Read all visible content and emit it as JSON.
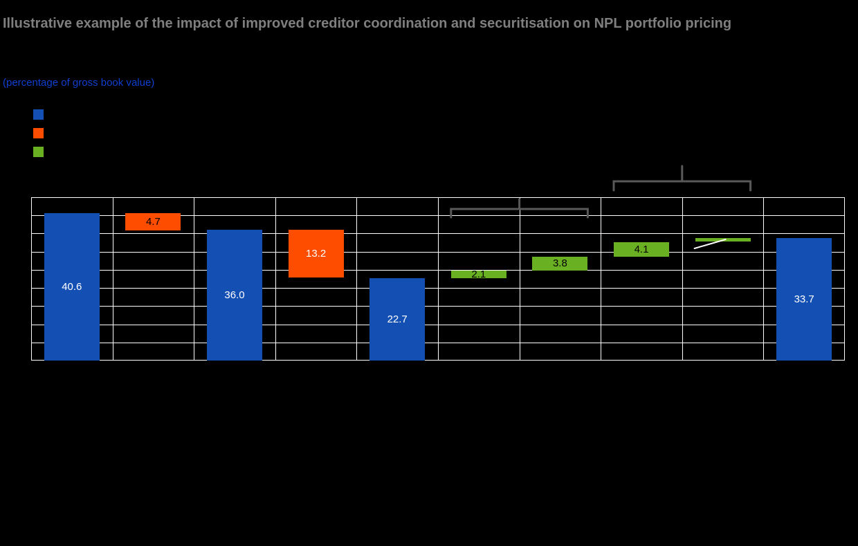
{
  "header": {
    "title": "Illustrative example of the impact of improved creditor coordination and securitisation on NPL portfolio pricing",
    "subtitle": "(percentage of gross book value)"
  },
  "legend": {
    "items": [
      {
        "name": "blue-series",
        "color": "#1450b4"
      },
      {
        "name": "orange-series",
        "color": "#ff4d00"
      },
      {
        "name": "green-series",
        "color": "#6ab023"
      }
    ]
  },
  "colors": {
    "background": "#000000",
    "grid": "#ffffff",
    "plot_border": "#ffffff",
    "title": "#7f7f7f",
    "subtitle": "#0f3fd0",
    "brace": "#595959",
    "leader_line": "#ffffff"
  },
  "chart_data": {
    "type": "bar",
    "subtype": "waterfall",
    "title": "Illustrative example of the impact of improved creditor coordination and securitisation on NPL portfolio pricing",
    "units_label": "(percentage of gross book value)",
    "ylim": [
      0,
      45
    ],
    "y_gridline_step": 5,
    "columns": 10,
    "grid": true,
    "y_axis_labels_visible": false,
    "x_axis_labels_visible": false,
    "series_colors": {
      "blue": "#1450b4",
      "orange": "#ff4d00",
      "green": "#6ab023"
    },
    "bars": [
      {
        "col": 0,
        "kind": "total",
        "base": 0,
        "value": 40.6,
        "label": "40.6",
        "color_key": "blue",
        "label_color": "#ffffff"
      },
      {
        "col": 1,
        "kind": "decrease",
        "base": 35.9,
        "value": 4.7,
        "label": "4.7",
        "color_key": "orange",
        "label_color": "#000000"
      },
      {
        "col": 2,
        "kind": "total",
        "base": 0,
        "value": 36.0,
        "label": "36.0",
        "color_key": "blue",
        "label_color": "#ffffff"
      },
      {
        "col": 3,
        "kind": "decrease",
        "base": 22.8,
        "value": 13.2,
        "label": "13.2",
        "color_key": "orange",
        "label_color": "#ffffff"
      },
      {
        "col": 4,
        "kind": "total",
        "base": 0,
        "value": 22.7,
        "label": "22.7",
        "color_key": "blue",
        "label_color": "#ffffff"
      },
      {
        "col": 5,
        "kind": "increase",
        "base": 22.7,
        "value": 2.1,
        "label": "2.1",
        "color_key": "green",
        "label_color": "#000000"
      },
      {
        "col": 6,
        "kind": "increase",
        "base": 24.8,
        "value": 3.8,
        "label": "3.8",
        "color_key": "green",
        "label_color": "#000000"
      },
      {
        "col": 7,
        "kind": "increase",
        "base": 28.6,
        "value": 4.1,
        "label": "4.1",
        "color_key": "green",
        "label_color": "#000000"
      },
      {
        "col": 8,
        "kind": "increase",
        "base": 32.7,
        "value": 1.0,
        "label": "",
        "color_key": "green",
        "label_color": "#000000"
      },
      {
        "col": 9,
        "kind": "total",
        "base": 0,
        "value": 33.7,
        "label": "33.7",
        "color_key": "blue",
        "label_color": "#ffffff"
      }
    ],
    "annotations": {
      "braces": [
        {
          "from_col": 5,
          "to_col": 6
        },
        {
          "from_col": 7,
          "to_col": 8
        }
      ],
      "leader_line_target_col": 8
    }
  }
}
